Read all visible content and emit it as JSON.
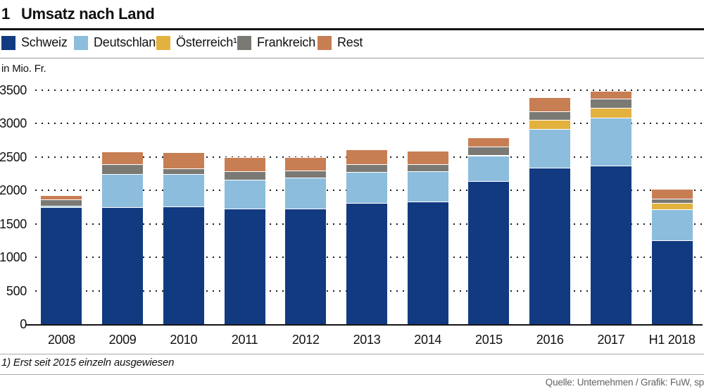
{
  "header": {
    "figure_number": "1",
    "title": "Umsatz nach Land"
  },
  "legend": {
    "items": [
      {
        "label": "Schweiz",
        "color": "#113a81"
      },
      {
        "label": "Deutschland",
        "color": "#8cbddc"
      },
      {
        "label": "Österreich¹",
        "color": "#e3b13e"
      },
      {
        "label": "Frankreich",
        "color": "#7b7974"
      },
      {
        "label": "Rest",
        "color": "#c87e53"
      }
    ]
  },
  "axis": {
    "unit_label": "in Mio. Fr.",
    "y_ticks": [
      0,
      500,
      1000,
      1500,
      2000,
      2500,
      3000,
      3500
    ]
  },
  "chart_data": {
    "type": "bar",
    "stacked": true,
    "title": "Umsatz nach Land",
    "ylabel": "in Mio. Fr.",
    "ylim": [
      0,
      3500
    ],
    "grid": "dotted-horizontal",
    "legend_position": "top",
    "categories": [
      "2008",
      "2009",
      "2010",
      "2011",
      "2012",
      "2013",
      "2014",
      "2015",
      "2016",
      "2017",
      "H1 2018"
    ],
    "series": [
      {
        "name": "Schweiz",
        "color": "#113a81",
        "values": [
          1750,
          1750,
          1760,
          1730,
          1730,
          1815,
          1835,
          2140,
          2340,
          2370,
          1255
        ]
      },
      {
        "name": "Deutschland",
        "color": "#8cbddc",
        "values": [
          25,
          495,
          485,
          430,
          465,
          465,
          455,
          380,
          580,
          715,
          465
        ]
      },
      {
        "name": "Österreich",
        "color": "#e3b13e",
        "values": [
          0,
          0,
          0,
          0,
          0,
          0,
          0,
          10,
          135,
          155,
          95
        ]
      },
      {
        "name": "Frankreich",
        "color": "#7b7974",
        "values": [
          95,
          150,
          85,
          125,
          105,
          115,
          105,
          125,
          125,
          130,
          65
        ]
      },
      {
        "name": "Rest",
        "color": "#c87e53",
        "values": [
          60,
          190,
          240,
          210,
          200,
          220,
          200,
          140,
          210,
          120,
          145
        ]
      }
    ],
    "totals": [
      1930,
      2585,
      2570,
      2495,
      2500,
      2615,
      2595,
      2795,
      3390,
      3490,
      2025
    ]
  },
  "footer": {
    "footnote": "1) Erst seit 2015 einzeln ausgewiesen",
    "source": "Quelle: Unternehmen / Grafik: FuW, sp"
  }
}
